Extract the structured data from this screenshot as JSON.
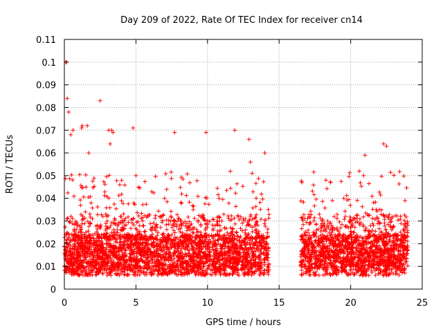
{
  "chart_data": {
    "type": "scatter",
    "title": "Day 209 of 2022, Rate Of TEC Index for receiver cn14",
    "xlabel": "GPS time / hours",
    "ylabel": "ROTI / TECUs",
    "xlim": [
      0,
      25
    ],
    "ylim": [
      0,
      0.11
    ],
    "xticks": [
      0,
      5,
      10,
      15,
      20,
      25
    ],
    "yticks": [
      0,
      0.01,
      0.02,
      0.03,
      0.04,
      0.05,
      0.06,
      0.07,
      0.08,
      0.09,
      0.1,
      0.11
    ],
    "xtick_labels": [
      "0",
      "5",
      "10",
      "15",
      "20",
      "25"
    ],
    "ytick_labels": [
      "0",
      "0.01",
      "0.02",
      "0.03",
      "0.04",
      "0.05",
      "0.06",
      "0.07",
      "0.08",
      "0.09",
      "0.1",
      "0.11"
    ],
    "grid": true,
    "marker": "+",
    "color": "#ff0000",
    "data_gap_hours": [
      14.3,
      16.5
    ],
    "series": [
      {
        "name": "ROTI",
        "x": [
          0.1,
          0.15,
          0.2,
          0.3,
          0.45,
          0.6,
          1.2,
          1.25,
          1.6,
          1.7,
          2.5,
          3.1,
          3.2,
          3.3,
          3.4,
          4.8,
          5.0,
          7.7,
          9.9,
          11.9,
          12.9,
          13.0,
          14.0,
          16.6,
          18.6,
          20.6,
          20.9,
          21.0,
          22.3,
          22.5,
          23.8,
          0.5,
          2.0,
          4.0,
          6.0,
          8.0,
          10.0,
          12.0,
          14.0,
          17.0,
          19.0,
          21.0,
          23.0,
          1.0,
          3.0,
          5.5,
          7.0,
          9.0,
          11.0,
          13.0,
          17.5,
          18.0,
          20.0,
          22.0,
          23.5
        ],
        "y": [
          0.1,
          0.1,
          0.084,
          0.078,
          0.068,
          0.07,
          0.071,
          0.072,
          0.072,
          0.06,
          0.083,
          0.07,
          0.064,
          0.07,
          0.069,
          0.071,
          0.05,
          0.069,
          0.069,
          0.07,
          0.066,
          0.056,
          0.06,
          0.047,
          0.047,
          0.052,
          0.05,
          0.059,
          0.064,
          0.063,
          0.039,
          0.015,
          0.012,
          0.014,
          0.016,
          0.013,
          0.012,
          0.014,
          0.013,
          0.012,
          0.015,
          0.014,
          0.013,
          0.025,
          0.03,
          0.028,
          0.04,
          0.035,
          0.03,
          0.032,
          0.025,
          0.03,
          0.027,
          0.035,
          0.02
        ]
      }
    ]
  }
}
